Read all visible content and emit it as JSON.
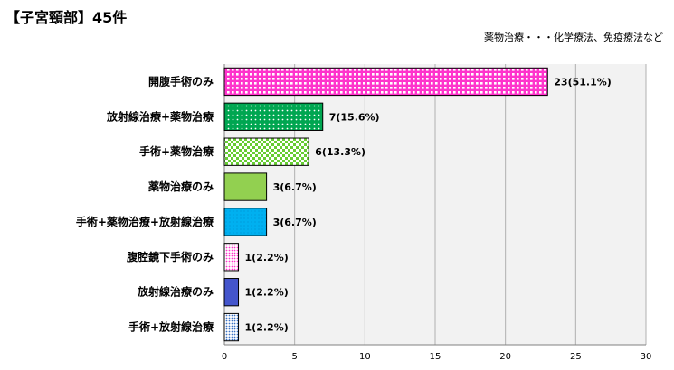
{
  "chart_data": {
    "type": "bar",
    "orientation": "horizontal",
    "title": "【子宮頸部】45件",
    "note": "薬物治療・・・化学療法、免疫療法など",
    "xlabel": "",
    "ylabel": "",
    "xlim": [
      0,
      30
    ],
    "x_ticks": [
      "0",
      "5",
      "10",
      "15",
      "20",
      "25",
      "30"
    ],
    "grid": true,
    "categories": [
      "開腹手術のみ",
      "放射線治療+薬物治療",
      "手術+薬物治療",
      "薬物治療のみ",
      "手術+薬物治療+放射線治療",
      "腹腔鏡下手術のみ",
      "放射線治療のみ",
      "手術+放射線治療"
    ],
    "values": [
      23,
      7,
      6,
      3,
      3,
      1,
      1,
      1
    ],
    "data_labels": [
      "23(51.1%)",
      "7(15.6%)",
      "6(13.3%)",
      "3(6.7%)",
      "3(6.7%)",
      "1(2.2%)",
      "1(2.2%)",
      "1(2.2%)"
    ],
    "colors": [
      "#ff33cc",
      "#00a651",
      "#66cc33",
      "#92d050",
      "#00b0f0",
      "#ff99ee",
      "#4455cc",
      "#8ab4e8"
    ],
    "patterns": [
      "grid",
      "dots",
      "checker",
      "solid",
      "dots",
      "dots",
      "solid",
      "dots"
    ]
  }
}
